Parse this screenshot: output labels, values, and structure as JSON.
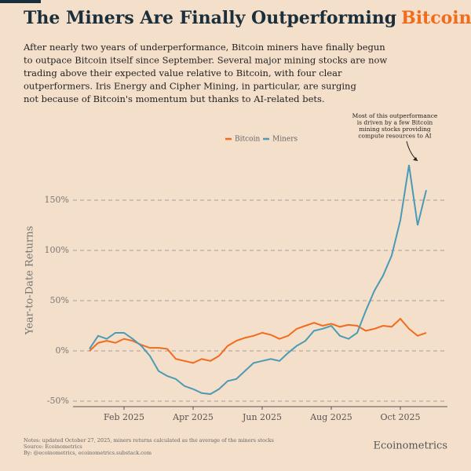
{
  "chart_data": {
    "type": "line",
    "title": "The Miners Are Finally Outperforming",
    "title_highlight": "Bitcoin",
    "subtitle": [
      "After nearly two years of underperformance, Bitcoin miners have finally begun",
      "to outpace Bitcoin itself since September. Several major mining stocks are now",
      "trading above their expected value relative to Bitcoin, with four clear",
      "outperformers. Iris Energy and Cipher Mining, in particular, are surging",
      "not because of Bitcoin's momentum but thanks to AI-related bets."
    ],
    "annotation": [
      "Most of this outperformance",
      "is driven by a few Bitcoin",
      "mining stocks providing",
      "compute resources to AI"
    ],
    "y_label": "Year-to-Date Returns",
    "categories": [
      null,
      null,
      null,
      null,
      "Feb 2025",
      null,
      null,
      null,
      null,
      null,
      null,
      null,
      "Apr 2025",
      null,
      null,
      null,
      null,
      null,
      null,
      null,
      "Jun 2025",
      null,
      null,
      null,
      null,
      null,
      null,
      null,
      "Aug 2025",
      null,
      null,
      null,
      null,
      null,
      null,
      null,
      "Oct 2025",
      null,
      null,
      null
    ],
    "series": [
      {
        "name": "Bitcoin",
        "color": "#f26b1d",
        "values": [
          0,
          8,
          10,
          8,
          12,
          10,
          6,
          3,
          3,
          2,
          -8,
          -10,
          -12,
          -8,
          -10,
          -5,
          5,
          10,
          13,
          15,
          18,
          16,
          12,
          15,
          22,
          25,
          28,
          25,
          27,
          24,
          26,
          25,
          20,
          22,
          25,
          24,
          32,
          22,
          15,
          18
        ]
      },
      {
        "name": "Miners",
        "color": "#4a9bb5",
        "values": [
          2,
          15,
          12,
          18,
          18,
          12,
          5,
          -5,
          -20,
          -25,
          -28,
          -35,
          -38,
          -42,
          -43,
          -38,
          -30,
          -28,
          -20,
          -12,
          -10,
          -8,
          -10,
          -2,
          5,
          10,
          20,
          22,
          25,
          15,
          12,
          18,
          40,
          60,
          75,
          95,
          130,
          185,
          125,
          160
        ]
      }
    ],
    "ylim": [
      -55,
      200
    ],
    "yticks": [
      {
        "value": -50,
        "label": "-50%"
      },
      {
        "value": 0,
        "label": "0%"
      },
      {
        "value": 50,
        "label": "50%"
      },
      {
        "value": 100,
        "label": "100%"
      },
      {
        "value": 150,
        "label": "150%"
      }
    ],
    "grid": true,
    "notes": [
      "Notes: updated October 27, 2025, miners returns calculated as the average of the miners stocks",
      "Source: Ecoinometrics",
      "By: @ecoinometrics, ecoinometrics.substack.com"
    ],
    "brand": "Ecoinometrics"
  }
}
